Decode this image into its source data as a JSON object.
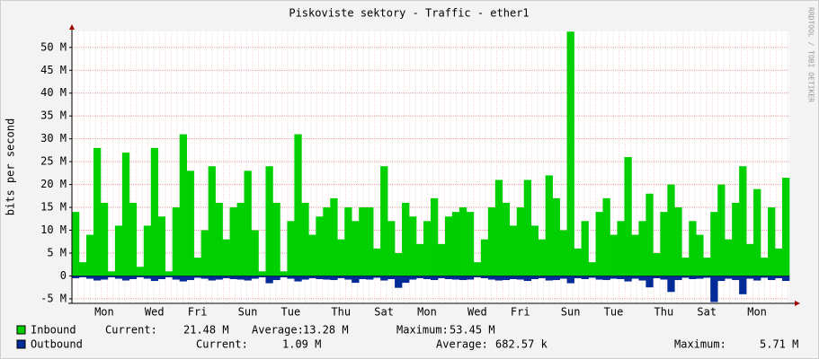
{
  "chart_data": {
    "type": "area",
    "title": "Piskoviste sektory  - Traffic - ether1",
    "y_label": "bits per second",
    "watermark": "RRDTOOL / TOBI OETIKER",
    "categories": [
      null,
      null,
      null,
      null,
      "Mon",
      null,
      null,
      null,
      null,
      null,
      null,
      "Wed",
      null,
      null,
      null,
      null,
      null,
      "Fri",
      null,
      null,
      null,
      null,
      null,
      null,
      "Sun",
      null,
      null,
      null,
      null,
      null,
      "Tue",
      null,
      null,
      null,
      null,
      null,
      null,
      "Thu",
      null,
      null,
      null,
      null,
      null,
      "Sat",
      null,
      null,
      null,
      null,
      null,
      "Mon",
      null,
      null,
      null,
      null,
      null,
      null,
      "Wed",
      null,
      null,
      null,
      null,
      null,
      "Fri",
      null,
      null,
      null,
      null,
      null,
      null,
      "Sun",
      null,
      null,
      null,
      null,
      null,
      "Tue",
      null,
      null,
      null,
      null,
      null,
      null,
      "Thu",
      null,
      null,
      null,
      null,
      null,
      "Sat",
      null,
      null,
      null,
      null,
      null,
      null,
      "Mon",
      null,
      null,
      null,
      null
    ],
    "series": [
      {
        "name": "Inbound",
        "color": "#00cf00",
        "stats": [
          {
            "label": "Current:",
            "value": "21.48 M"
          },
          {
            "label": "Average:",
            "value": "13.28 M"
          },
          {
            "label": "Maximum:",
            "value": "53.45 M"
          }
        ],
        "values": [
          14,
          3,
          9,
          28,
          16,
          1,
          11,
          27,
          16,
          2,
          11,
          28,
          13,
          1,
          15,
          31,
          23,
          4,
          10,
          24,
          16,
          8,
          15,
          16,
          23,
          10,
          1,
          24,
          16,
          1,
          12,
          31,
          16,
          9,
          13,
          15,
          17,
          8,
          15,
          12,
          15,
          15,
          6,
          24,
          12,
          5,
          16,
          13,
          7,
          12,
          17,
          7,
          13,
          14,
          15,
          14,
          3,
          8,
          15,
          21,
          16,
          11,
          15,
          21,
          11,
          8,
          22,
          17,
          10,
          53.45,
          6,
          12,
          3,
          14,
          17,
          9,
          12,
          26,
          9,
          12,
          18,
          5,
          14,
          20,
          15,
          4,
          12,
          9,
          4,
          14,
          20,
          8,
          16,
          24,
          7,
          19,
          4,
          15,
          6,
          21.48
        ]
      },
      {
        "name": "Outbound",
        "color": "#002a97",
        "stats": [
          {
            "label": "Current:",
            "value": "1.09 M"
          },
          {
            "label": "Average:",
            "value": "682.57 k"
          },
          {
            "label": "Maximum:",
            "value": "5.71 M"
          }
        ],
        "values": [
          -0.5,
          -0.3,
          -0.6,
          -1.0,
          -0.8,
          -0.3,
          -0.6,
          -1.0,
          -0.7,
          -0.3,
          -0.6,
          -1.1,
          -0.7,
          -0.3,
          -0.8,
          -1.2,
          -0.9,
          -0.4,
          -0.6,
          -1.0,
          -0.8,
          -0.5,
          -0.7,
          -0.8,
          -1.0,
          -0.6,
          -0.3,
          -1.6,
          -0.9,
          -0.3,
          -0.6,
          -1.2,
          -0.8,
          -0.5,
          -0.7,
          -0.8,
          -0.9,
          -0.5,
          -0.8,
          -1.5,
          -0.7,
          -0.8,
          -0.4,
          -1.0,
          -0.7,
          -2.6,
          -1.5,
          -0.8,
          -0.5,
          -0.7,
          -0.9,
          -0.5,
          -0.7,
          -0.8,
          -0.9,
          -0.8,
          -0.3,
          -0.5,
          -0.8,
          -1.0,
          -0.9,
          -0.7,
          -0.8,
          -1.1,
          -0.7,
          -0.5,
          -1.0,
          -0.9,
          -0.6,
          -1.6,
          -0.5,
          -0.7,
          -0.4,
          -0.8,
          -0.9,
          -0.6,
          -0.7,
          -1.2,
          -0.6,
          -1.0,
          -2.5,
          -0.5,
          -0.8,
          -3.5,
          -0.9,
          -0.4,
          -0.7,
          -0.6,
          -0.4,
          -5.71,
          -1.1,
          -0.6,
          -0.9,
          -4.0,
          -0.6,
          -1.0,
          -0.4,
          -0.9,
          -0.5,
          -1.09
        ]
      }
    ],
    "ylim": [
      -6,
      53.5
    ],
    "yticks": [
      {
        "value": -5,
        "label": "-5 M"
      },
      0,
      {
        "value": 5,
        "label": "5 M"
      },
      {
        "value": 10,
        "label": "10 M"
      },
      {
        "value": 15,
        "label": "15 M"
      },
      {
        "value": 20,
        "label": "20 M"
      },
      {
        "value": 25,
        "label": "25 M"
      },
      {
        "value": 30,
        "label": "30 M"
      },
      {
        "value": 35,
        "label": "35 M"
      },
      {
        "value": 40,
        "label": "40 M"
      },
      {
        "value": 45,
        "label": "45 M"
      },
      {
        "value": 50,
        "label": "50 M"
      }
    ],
    "grid": true
  }
}
